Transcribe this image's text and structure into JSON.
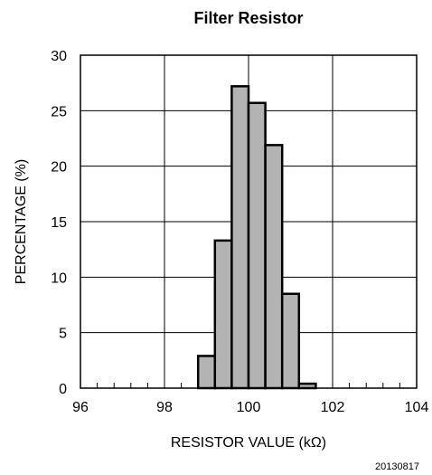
{
  "chart_data": {
    "type": "bar",
    "title": "Filter Resistor",
    "xlabel": "RESISTOR VALUE (kΩ)",
    "ylabel": "PERCENTAGE (%)",
    "xlim": [
      96,
      104
    ],
    "ylim": [
      0,
      30
    ],
    "x_ticks": [
      "96",
      "98",
      "100",
      "102",
      "104"
    ],
    "y_ticks": [
      "0",
      "5",
      "10",
      "15",
      "20",
      "25",
      "30"
    ],
    "grid": true,
    "bin_width": 0.4,
    "bins": [
      {
        "start": 98.8,
        "end": 99.2,
        "value": 2.9
      },
      {
        "start": 99.2,
        "end": 99.6,
        "value": 13.3
      },
      {
        "start": 99.6,
        "end": 100.0,
        "value": 27.2
      },
      {
        "start": 100.0,
        "end": 100.4,
        "value": 25.7
      },
      {
        "start": 100.4,
        "end": 100.8,
        "value": 21.9
      },
      {
        "start": 100.8,
        "end": 101.2,
        "value": 8.5
      },
      {
        "start": 101.2,
        "end": 101.6,
        "value": 0.4
      }
    ]
  },
  "footnote": "20130817"
}
